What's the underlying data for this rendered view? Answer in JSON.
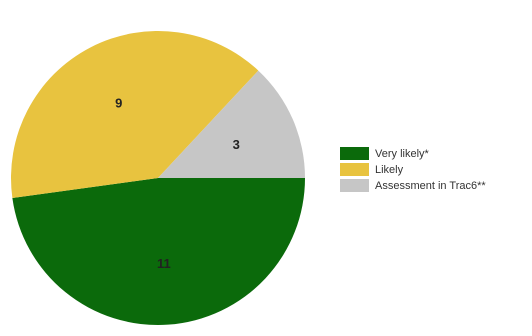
{
  "chart_data": {
    "type": "pie",
    "title": "",
    "slices": [
      {
        "label": "Very likely*",
        "value": 11,
        "color": "#0b6a0b"
      },
      {
        "label": "Likely",
        "value": 9,
        "color": "#e8c33f"
      },
      {
        "label": "Assessment in Trac6**",
        "value": 3,
        "color": "#c6c6c6"
      }
    ],
    "legend_position": "right",
    "start_angle": "3 o'clock",
    "direction": "clockwise"
  }
}
